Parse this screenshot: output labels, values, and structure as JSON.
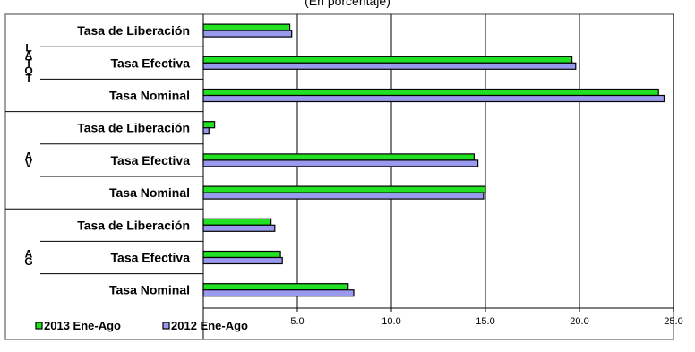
{
  "chart_data": {
    "type": "bar",
    "orientation": "horizontal",
    "subtitle": "(En porcentaje)",
    "groups": [
      {
        "label": "LATOT",
        "categories": [
          "Tasa de Liberación",
          "Tasa Efectiva",
          "Tasa Nominal"
        ]
      },
      {
        "label": "AV",
        "categories": [
          "Tasa de Liberación",
          "Tasa Efectiva",
          "Tasa Nominal"
        ]
      },
      {
        "label": "AG",
        "categories": [
          "Tasa de Liberación",
          "Tasa Efectiva",
          "Tasa Nominal"
        ]
      }
    ],
    "series": [
      {
        "name": "2013 Ene-Ago",
        "color": "#22e022",
        "values": [
          4.6,
          19.6,
          24.2,
          0.6,
          14.4,
          15.0,
          3.6,
          4.1,
          7.7
        ]
      },
      {
        "name": "2012 Ene-Ago",
        "color": "#9999ee",
        "values": [
          4.7,
          19.8,
          24.5,
          0.3,
          14.6,
          14.9,
          3.8,
          4.2,
          8.0
        ]
      }
    ],
    "x_ticks": [
      "5.0",
      "10.0",
      "15.0",
      "20.0",
      "25.0"
    ],
    "xlim": [
      0,
      25
    ],
    "grid": true,
    "legend_position": "bottom-left"
  }
}
